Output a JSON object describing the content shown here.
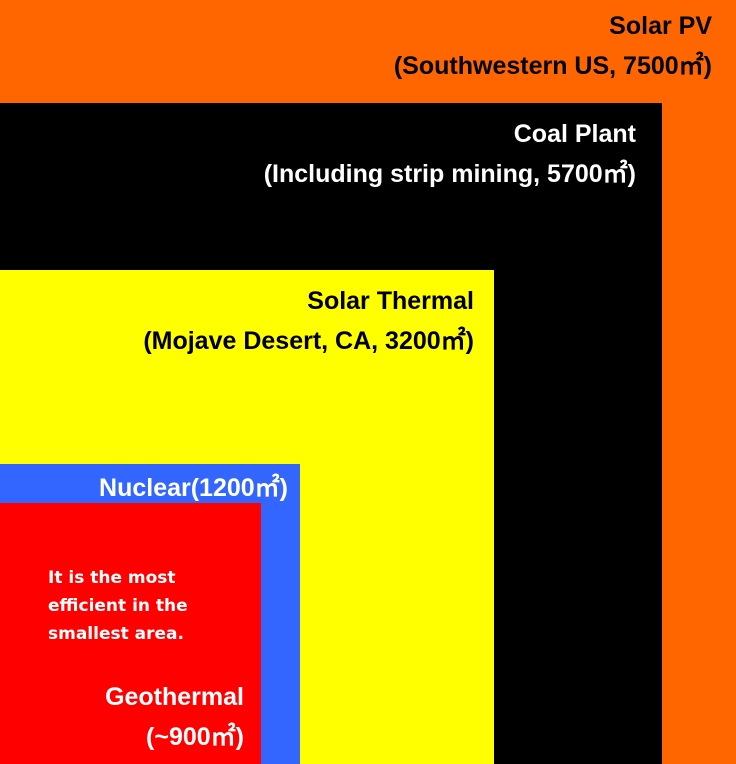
{
  "solar_pv": {
    "name": "Solar PV",
    "detail": "(Southwestern US, 7500㎡)",
    "color": "#ff6600"
  },
  "coal": {
    "name": "Coal Plant",
    "detail": "(Including strip mining, 5700㎡)",
    "color": "#000000"
  },
  "solar_thermal": {
    "name": "Solar Thermal",
    "detail": "(Mojave Desert, CA, 3200㎡)",
    "color": "#ffff00"
  },
  "nuclear": {
    "name": "Nuclear(1200㎡)",
    "color": "#3366ff"
  },
  "geothermal": {
    "name": "Geothermal",
    "detail": "(~900㎡)",
    "color": "#ff0000",
    "note": "It is the most efficient in the smallest area."
  }
}
